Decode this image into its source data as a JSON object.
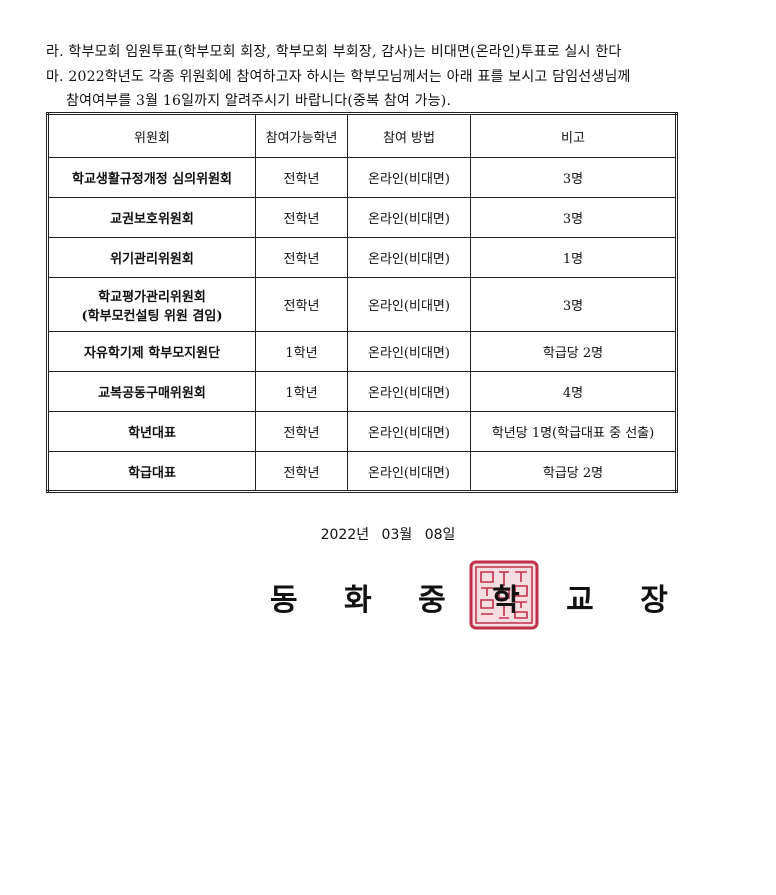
{
  "notice": {
    "line_ra": "라. 학부모회 임원투표(학부모회 회장, 학부모회 부회장, 감사)는 비대면(온라인)투표로 실시 한다",
    "line_ma_1": "마. 2022학년도 각종 위원회에 참여하고자 하시는 학부모님께서는 아래 표를 보시고 담임선생님께",
    "line_ma_2": "참여여부를 3월 16일까지 알려주시기 바랍니다(중복 참여 가능)."
  },
  "table": {
    "headers": [
      "위원회",
      "참여가능학년",
      "참여 방법",
      "비고"
    ],
    "rows": [
      {
        "name": "학교생활규정개정 심의위원회",
        "grade": "전학년",
        "method": "온라인(비대면)",
        "note": "3명"
      },
      {
        "name": "교권보호위원회",
        "grade": "전학년",
        "method": "온라인(비대면)",
        "note": "3명"
      },
      {
        "name": "위기관리위원회",
        "grade": "전학년",
        "method": "온라인(비대면)",
        "note": "1명"
      },
      {
        "name": "학교평가관리위원회",
        "name2": "(학부모컨설팅 위원 겸임)",
        "grade": "전학년",
        "method": "온라인(비대면)",
        "note": "3명"
      },
      {
        "name": "자유학기제 학부모지원단",
        "grade": "1학년",
        "method": "온라인(비대면)",
        "note": "학급당 2명"
      },
      {
        "name": "교복공동구매위원회",
        "grade": "1학년",
        "method": "온라인(비대면)",
        "note": "4명"
      },
      {
        "name": "학년대표",
        "grade": "전학년",
        "method": "온라인(비대면)",
        "note": "학년당 1명(학급대표 중 선출)"
      },
      {
        "name": "학급대표",
        "grade": "전학년",
        "method": "온라인(비대면)",
        "note": "학급당 2명"
      }
    ]
  },
  "date": "2022년 03월 08일",
  "school_head": "동 화 중 학 교 장",
  "seal": {
    "color": "#c0304a",
    "lettering": "동화중학교장"
  }
}
